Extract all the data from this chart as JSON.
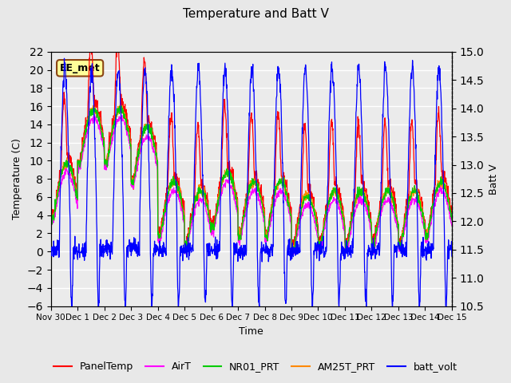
{
  "title": "Temperature and Batt V",
  "xlabel": "Time",
  "ylabel_left": "Temperature (C)",
  "ylabel_right": "Batt V",
  "annotation": "EE_met",
  "ylim_left": [
    -6,
    22
  ],
  "ylim_right": [
    10.5,
    15.0
  ],
  "yticks_left": [
    -6,
    -4,
    -2,
    0,
    2,
    4,
    6,
    8,
    10,
    12,
    14,
    16,
    18,
    20,
    22
  ],
  "yticks_right": [
    10.5,
    11.0,
    11.5,
    12.0,
    12.5,
    13.0,
    13.5,
    14.0,
    14.5,
    15.0
  ],
  "xtick_labels": [
    "Nov 30",
    "Dec 1",
    "Dec 2",
    "Dec 3",
    "Dec 4",
    "Dec 5",
    "Dec 6",
    "Dec 7",
    "Dec 8",
    "Dec 9",
    "Dec 10",
    "Dec 11",
    "Dec 12",
    "Dec 13",
    "Dec 14",
    "Dec 15"
  ],
  "colors": {
    "PanelTemp": "#ff0000",
    "AirT": "#ff00ff",
    "NR01_PRT": "#00cc00",
    "AM25T_PRT": "#ff8800",
    "batt_volt": "#0000ff"
  },
  "legend_labels": [
    "PanelTemp",
    "AirT",
    "NR01_PRT",
    "AM25T_PRT",
    "batt_volt"
  ],
  "fig_bg_color": "#e8e8e8",
  "plot_bg_color": "#ebebeb",
  "n_days": 15,
  "pts_per_day": 96,
  "seed": 42
}
